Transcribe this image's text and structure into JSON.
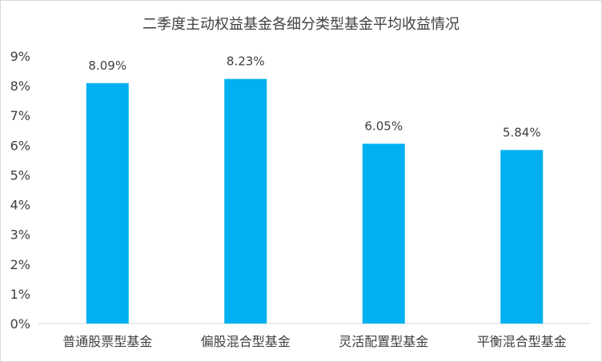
{
  "chart_data": {
    "type": "bar",
    "title": "二季度主动权益基金各细分类型基金平均收益情况",
    "categories": [
      "普通股票型基金",
      "偏股混合型基金",
      "灵活配置型基金",
      "平衡混合型基金"
    ],
    "values": [
      8.09,
      8.23,
      6.05,
      5.84
    ],
    "data_labels": [
      "8.09%",
      "8.23%",
      "6.05%",
      "5.84%"
    ],
    "ylim": [
      0,
      9
    ],
    "yticks": [
      0,
      1,
      2,
      3,
      4,
      5,
      6,
      7,
      8,
      9
    ],
    "ytick_labels": [
      "0%",
      "1%",
      "2%",
      "3%",
      "4%",
      "5%",
      "6%",
      "7%",
      "8%",
      "9%"
    ],
    "grid": false,
    "legend": "none",
    "bar_color": "#00b0f0"
  }
}
